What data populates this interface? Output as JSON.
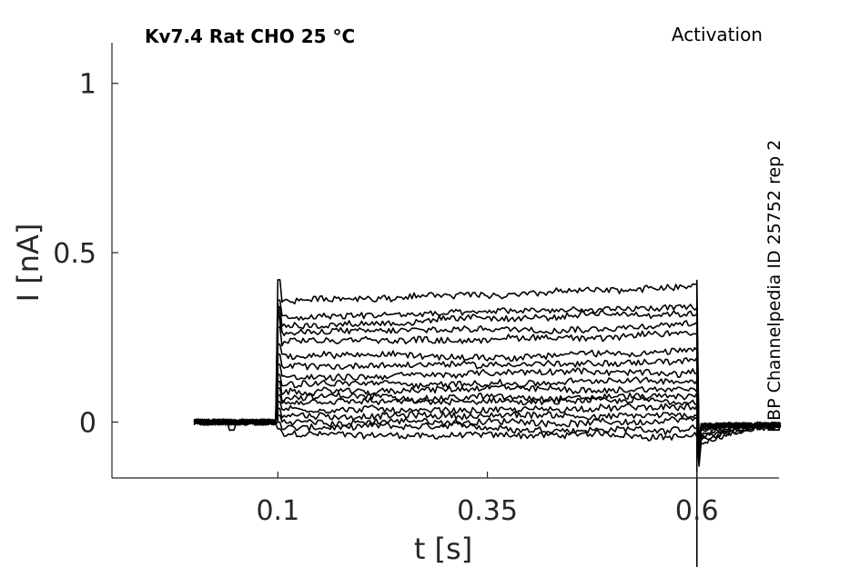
{
  "chart_data": {
    "type": "line",
    "title": "Kv7.4  Rat  CHO  25 °C",
    "subtitle": "Activation",
    "annotation": "BBP Channelpedia ID 25752 rep 2",
    "xlabel": "t [s]",
    "ylabel": "I [nA]",
    "xlim": [
      -0.098,
      0.698
    ],
    "ylim": [
      -0.165,
      1.12
    ],
    "xticks": [
      0.1,
      0.35,
      0.6
    ],
    "xtick_labels": [
      "0.1",
      "0.35",
      "0.6"
    ],
    "yticks": [
      0,
      0.5,
      1
    ],
    "ytick_labels": [
      "0",
      "0.5",
      "1"
    ],
    "grid": false,
    "legend": "none",
    "trace_color": "#000000",
    "protocol": {
      "t_start": 0.0,
      "step_on": 0.1,
      "step_off": 0.6,
      "t_end": 0.7
    },
    "series": [
      {
        "steady": -0.04,
        "tail": -0.07
      },
      {
        "steady": -0.02,
        "tail": -0.06
      },
      {
        "steady": 0.0,
        "tail": -0.05
      },
      {
        "steady": 0.02,
        "tail": -0.04
      },
      {
        "steady": 0.04,
        "tail": -0.03
      },
      {
        "steady": 0.06,
        "tail": -0.02
      },
      {
        "steady": 0.08,
        "tail": -0.02
      },
      {
        "steady": 0.1,
        "tail": -0.01
      },
      {
        "steady": 0.12,
        "tail": -0.01
      },
      {
        "steady": 0.15,
        "tail": -0.01
      },
      {
        "steady": 0.18,
        "tail": -0.01
      },
      {
        "steady": 0.21,
        "tail": -0.01
      },
      {
        "steady": 0.26,
        "tail": -0.01
      },
      {
        "steady": 0.29,
        "tail": -0.01
      },
      {
        "steady": 0.32,
        "tail": -0.01
      },
      {
        "steady": 0.34,
        "tail": -0.01
      },
      {
        "steady": 0.4,
        "tail": -0.01
      }
    ]
  }
}
